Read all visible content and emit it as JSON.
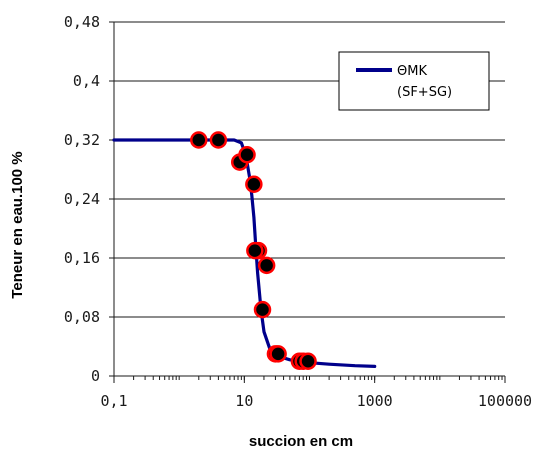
{
  "chart_data": {
    "type": "line",
    "xlabel": "succion en cm",
    "ylabel": "Teneur en eau.100 %",
    "x_scale": "log",
    "xlim": [
      0.1,
      100000
    ],
    "ylim": [
      0,
      0.48
    ],
    "x_major_ticks": [
      0.1,
      10,
      1000,
      100000
    ],
    "x_tick_labels": [
      "0,1",
      "10",
      "1000",
      "100000"
    ],
    "y_ticks": [
      0,
      0.08,
      0.16,
      0.24,
      0.32,
      0.4,
      0.48
    ],
    "y_tick_labels": [
      "0",
      "0,08",
      "0,16",
      "0,24",
      "0,32",
      "0,4",
      "0,48"
    ],
    "grid": "horizontal",
    "legend_position": "top-right",
    "series": [
      {
        "name": "ΘMK (SF+SG)",
        "kind": "line",
        "color": "#00008b",
        "x": [
          0.1,
          3,
          5,
          7,
          9,
          10,
          11,
          12,
          13,
          14,
          15,
          16,
          18,
          20,
          25,
          30,
          50,
          100,
          200,
          500,
          1000
        ],
        "y": [
          0.32,
          0.32,
          0.32,
          0.32,
          0.316,
          0.305,
          0.29,
          0.27,
          0.245,
          0.215,
          0.175,
          0.14,
          0.09,
          0.06,
          0.035,
          0.028,
          0.022,
          0.018,
          0.016,
          0.014,
          0.013
        ]
      },
      {
        "kind": "scatter",
        "marker_color": "#000000",
        "marker_edge": "#ff0000",
        "x": [
          2,
          4,
          8.5,
          11,
          14,
          16.5,
          22,
          19,
          14.5,
          30,
          33,
          70,
          80,
          95
        ],
        "y": [
          0.32,
          0.32,
          0.29,
          0.3,
          0.26,
          0.17,
          0.15,
          0.09,
          0.17,
          0.03,
          0.03,
          0.02,
          0.02,
          0.02
        ]
      }
    ],
    "legend": {
      "line1": "ΘMK",
      "line2": "(SF+SG)"
    }
  }
}
